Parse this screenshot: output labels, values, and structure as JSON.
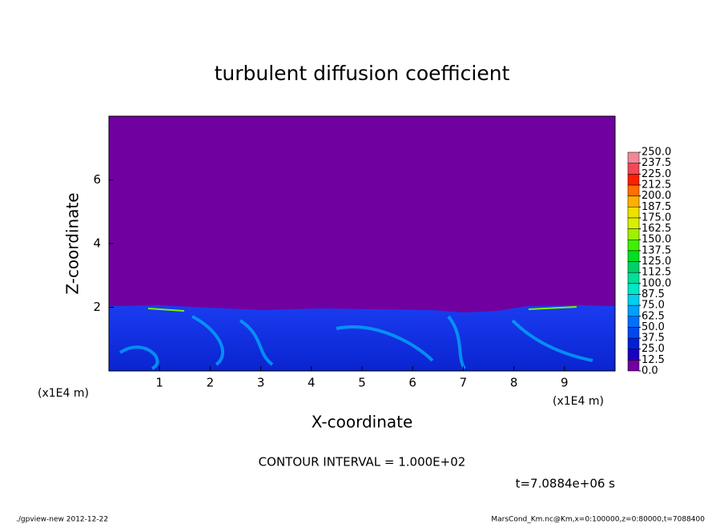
{
  "chart_data": {
    "type": "contour",
    "title": "turbulent diffusion coefficient",
    "x_label": "X-coordinate",
    "y_label": "Z-coordinate",
    "x_unit": "(x1E4 m)",
    "y_unit": "(x1E4 m)",
    "xlim": [
      0,
      10
    ],
    "ylim": [
      0,
      8
    ],
    "xticks": [
      1,
      2,
      3,
      4,
      5,
      6,
      7,
      8,
      9
    ],
    "yticks": [
      2,
      4,
      6
    ],
    "contour_interval": "CONTOUR INTERVAL = 1.000E+02",
    "time_label": "t=7.0884e+06 s",
    "footer_left": "./gpview-new  2012-12-22",
    "footer_right": "MarsCond_Km.nc@Km,x=0:100000,z=0:80000,t=7088400",
    "colorbar": {
      "levels": [
        {
          "value": 0,
          "label": "0.0"
        },
        12.5,
        {
          "value": 25,
          "label": "25.0"
        },
        37.5,
        {
          "value": 50,
          "label": "50.0"
        },
        62.5,
        {
          "value": 75,
          "label": "75.0"
        },
        87.5,
        {
          "value": 100,
          "label": "100.0"
        },
        112.5,
        {
          "value": 125,
          "label": "125.0"
        },
        137.5,
        {
          "value": 150,
          "label": "150.0"
        },
        162.5,
        {
          "value": 175,
          "label": "175.0"
        },
        187.5,
        {
          "value": 200,
          "label": "200.0"
        },
        212.5,
        {
          "value": 225,
          "label": "225.0"
        },
        237.5,
        {
          "value": 250,
          "label": "250.0"
        }
      ],
      "colors": [
        "#7000a0",
        "#1a00c0",
        "#0020d8",
        "#0048f0",
        "#0070ff",
        "#00a0ff",
        "#00d0f0",
        "#00e8c8",
        "#00e098",
        "#00d068",
        "#00e020",
        "#40f000",
        "#a0f000",
        "#d8f000",
        "#f0e000",
        "#ffb000",
        "#ff7000",
        "#ff2000",
        "#f04858",
        "#f08898"
      ]
    }
  }
}
